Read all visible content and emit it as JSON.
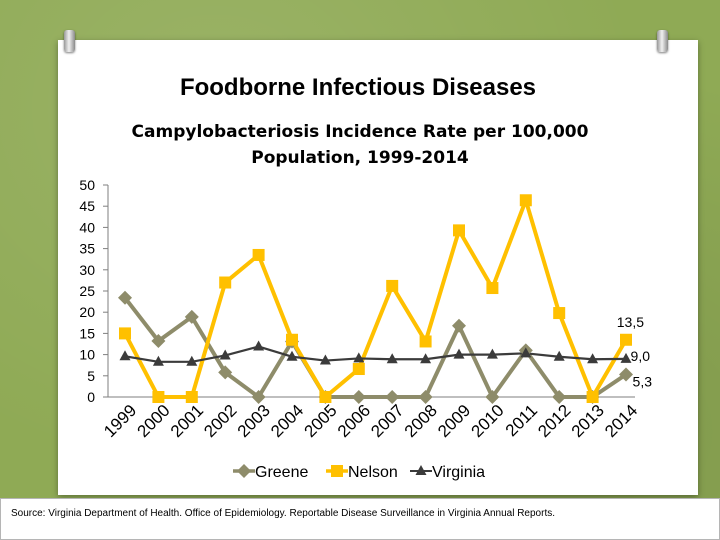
{
  "slide": {
    "title": "Foodborne Infectious Diseases",
    "source": "Source: Virginia Department of Health. Office of Epidemiology. Reportable Disease Surveillance in Virginia Annual Reports."
  },
  "chart_data": {
    "type": "line",
    "title": [
      "Campylobacteriosis Incidence Rate per 100,000",
      "Population, 1999-2014"
    ],
    "xlabel": "",
    "ylabel": "",
    "ylim": [
      0,
      50
    ],
    "yticks": [
      "0",
      "5",
      "10",
      "15",
      "20",
      "25",
      "30",
      "35",
      "40",
      "45",
      "50"
    ],
    "grid": false,
    "legend_position": "bottom",
    "categories": [
      "1999",
      "2000",
      "2001",
      "2002",
      "2003",
      "2004",
      "2005",
      "2006",
      "2007",
      "2008",
      "2009",
      "2010",
      "2011",
      "2012",
      "2013",
      "2014"
    ],
    "series": [
      {
        "name": "Greene",
        "color": "#8e8c6a",
        "marker": "diamond",
        "values": [
          23.4,
          13.2,
          18.9,
          5.8,
          0,
          13.1,
          0,
          0,
          0,
          0,
          16.8,
          0,
          11.0,
          0,
          0,
          5.3
        ]
      },
      {
        "name": "Nelson",
        "color": "#ffc000",
        "marker": "square",
        "values": [
          15.0,
          0,
          0,
          27.0,
          33.5,
          13.5,
          0,
          6.6,
          26.2,
          13.1,
          39.3,
          25.7,
          46.4,
          19.8,
          0,
          13.5
        ]
      },
      {
        "name": "Virginia",
        "color": "#3b3b3b",
        "marker": "triangle",
        "values": [
          9.6,
          8.3,
          8.3,
          9.8,
          11.9,
          9.5,
          8.6,
          9.1,
          8.9,
          8.9,
          10.0,
          10.0,
          10.3,
          9.5,
          8.9,
          9.0
        ]
      }
    ],
    "end_labels": [
      {
        "series": "Nelson",
        "text": "13,5"
      },
      {
        "series": "Virginia",
        "text": "9,0"
      },
      {
        "series": "Greene",
        "text": "5,3"
      }
    ]
  }
}
